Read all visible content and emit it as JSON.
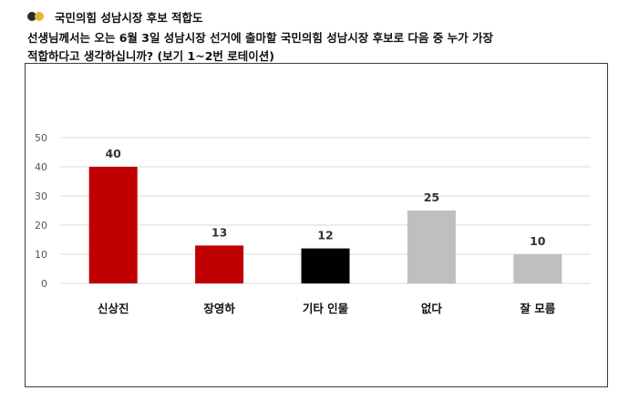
{
  "header": {
    "title": "국민의힘 성남시장 후보 적합도",
    "question_line1": "선생님께서는 오는 6월 3일 성남시장 선거에 출마할 국민의힘 성남시장 후보로 다음 중 누가 가장",
    "question_line2": "적합하다고 생각하십니까? (보기 1~2번 로테이션)"
  },
  "colors": {
    "candidate": "#c00000",
    "other": "#000000",
    "none": "#bfbfbf",
    "grid": "#d9d9d9",
    "dot_dark": "#2b2b2b",
    "dot_gold": "#e8b23a"
  },
  "chart_data": {
    "type": "bar",
    "categories": [
      "신상진",
      "장영하",
      "기타 인물",
      "없다",
      "잘 모름"
    ],
    "values": [
      40,
      13,
      12,
      25,
      10
    ],
    "bar_colors": [
      "#c00000",
      "#c00000",
      "#000000",
      "#bfbfbf",
      "#bfbfbf"
    ],
    "yticks": [
      0,
      10,
      20,
      30,
      40,
      50
    ],
    "ylim": [
      0,
      50
    ],
    "grid": true,
    "legend": "none"
  }
}
